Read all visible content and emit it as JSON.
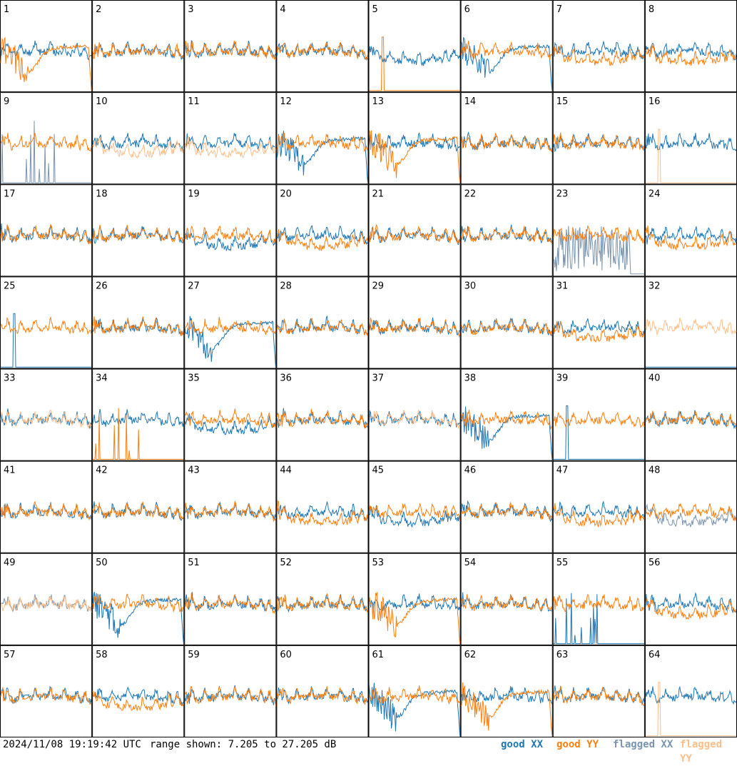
{
  "footer": {
    "timestamp": "2024/11/08 19:19:42 UTC",
    "range_text": "range shown: 7.205 to 27.205 dB"
  },
  "legend": [
    {
      "label": "good XX",
      "color": "#1f77b4"
    },
    {
      "label": "good YY",
      "color": "#ff7f0e"
    },
    {
      "label": "flagged XX",
      "color": "#7a95b0"
    },
    {
      "label": "flagged YY",
      "color": "#ffbf8a"
    }
  ],
  "chart_data": {
    "type": "line",
    "grid": "8x8 small multiples",
    "ylim": [
      7.205,
      27.205
    ],
    "units": "dB",
    "series_names": [
      "good XX",
      "good YY",
      "flagged XX",
      "flagged YY"
    ],
    "panels": [
      {
        "id": 1,
        "xx": "normal",
        "yy": "deep"
      },
      {
        "id": 2,
        "xx": "normal",
        "yy": "normal"
      },
      {
        "id": 3,
        "xx": "normal",
        "yy": "normal"
      },
      {
        "id": 4,
        "xx": "normal",
        "yy": "normal"
      },
      {
        "id": 5,
        "xx": "low",
        "yy": "spike"
      },
      {
        "id": 6,
        "xx": "deep",
        "yy": "normal"
      },
      {
        "id": 7,
        "xx": "normal",
        "yy": "low"
      },
      {
        "id": 8,
        "xx": "normal",
        "yy": "low"
      },
      {
        "id": 9,
        "xx": "spikes",
        "yy": "normal",
        "flag_xx": true
      },
      {
        "id": 10,
        "xx": "normal",
        "yy": "low",
        "flag_yy": true
      },
      {
        "id": 11,
        "xx": "normal",
        "yy": "low",
        "flag_yy": true
      },
      {
        "id": 12,
        "xx": "deep",
        "yy": "normal"
      },
      {
        "id": 13,
        "xx": "normal",
        "yy": "deep"
      },
      {
        "id": 14,
        "xx": "normal",
        "yy": "normal"
      },
      {
        "id": 15,
        "xx": "normal",
        "yy": "normal"
      },
      {
        "id": 16,
        "xx": "normal",
        "yy": "spike",
        "flag_yy": true
      },
      {
        "id": 17,
        "xx": "normal",
        "yy": "normal"
      },
      {
        "id": 18,
        "xx": "normal",
        "yy": "normal"
      },
      {
        "id": 19,
        "xx": "low",
        "yy": "normal"
      },
      {
        "id": 20,
        "xx": "normal",
        "yy": "low"
      },
      {
        "id": 21,
        "xx": "normal",
        "yy": "normal"
      },
      {
        "id": 22,
        "xx": "normal",
        "yy": "normal"
      },
      {
        "id": 23,
        "xx": "noise",
        "yy": "normal",
        "flag_xx": true
      },
      {
        "id": 24,
        "xx": "normal",
        "yy": "low"
      },
      {
        "id": 25,
        "xx": "spike",
        "yy": "normal"
      },
      {
        "id": 26,
        "xx": "normal",
        "yy": "normal"
      },
      {
        "id": 27,
        "xx": "deep",
        "yy": "normal"
      },
      {
        "id": 28,
        "xx": "normal",
        "yy": "normal"
      },
      {
        "id": 29,
        "xx": "normal",
        "yy": "normal"
      },
      {
        "id": 30,
        "xx": "normal",
        "yy": "normal"
      },
      {
        "id": 31,
        "xx": "normal",
        "yy": "low"
      },
      {
        "id": 32,
        "xx": "none",
        "yy": "normal",
        "flag_yy": true
      },
      {
        "id": 33,
        "xx": "normal",
        "yy": "normal",
        "flag_yy": true
      },
      {
        "id": 34,
        "xx": "normal",
        "yy": "spikes"
      },
      {
        "id": 35,
        "xx": "low",
        "yy": "normal"
      },
      {
        "id": 36,
        "xx": "normal",
        "yy": "normal"
      },
      {
        "id": 37,
        "xx": "normal",
        "yy": "normal",
        "flag_yy": true
      },
      {
        "id": 38,
        "xx": "deep",
        "yy": "normal"
      },
      {
        "id": 39,
        "xx": "spike",
        "yy": "normal"
      },
      {
        "id": 40,
        "xx": "normal",
        "yy": "normal"
      },
      {
        "id": 41,
        "xx": "normal",
        "yy": "normal"
      },
      {
        "id": 42,
        "xx": "normal",
        "yy": "normal"
      },
      {
        "id": 43,
        "xx": "normal",
        "yy": "normal"
      },
      {
        "id": 44,
        "xx": "normal",
        "yy": "low"
      },
      {
        "id": 45,
        "xx": "low",
        "yy": "normal"
      },
      {
        "id": 46,
        "xx": "normal",
        "yy": "normal"
      },
      {
        "id": 47,
        "xx": "normal",
        "yy": "low"
      },
      {
        "id": 48,
        "xx": "low",
        "yy": "normal",
        "flag_xx": true
      },
      {
        "id": 49,
        "xx": "normal",
        "yy": "normal",
        "flag_xx": true,
        "flag_yy": true
      },
      {
        "id": 50,
        "xx": "deep",
        "yy": "normal"
      },
      {
        "id": 51,
        "xx": "normal",
        "yy": "normal"
      },
      {
        "id": 52,
        "xx": "normal",
        "yy": "normal"
      },
      {
        "id": 53,
        "xx": "normal",
        "yy": "deep"
      },
      {
        "id": 54,
        "xx": "normal",
        "yy": "normal"
      },
      {
        "id": 55,
        "xx": "spikes",
        "yy": "normal"
      },
      {
        "id": 56,
        "xx": "normal",
        "yy": "low"
      },
      {
        "id": 57,
        "xx": "normal",
        "yy": "normal"
      },
      {
        "id": 58,
        "xx": "normal",
        "yy": "low"
      },
      {
        "id": 59,
        "xx": "normal",
        "yy": "normal"
      },
      {
        "id": 60,
        "xx": "normal",
        "yy": "normal"
      },
      {
        "id": 61,
        "xx": "deep",
        "yy": "normal"
      },
      {
        "id": 62,
        "xx": "normal",
        "yy": "deep"
      },
      {
        "id": 63,
        "xx": "normal",
        "yy": "normal"
      },
      {
        "id": 64,
        "xx": "normal",
        "yy": "spike",
        "flag_yy": true
      }
    ]
  }
}
